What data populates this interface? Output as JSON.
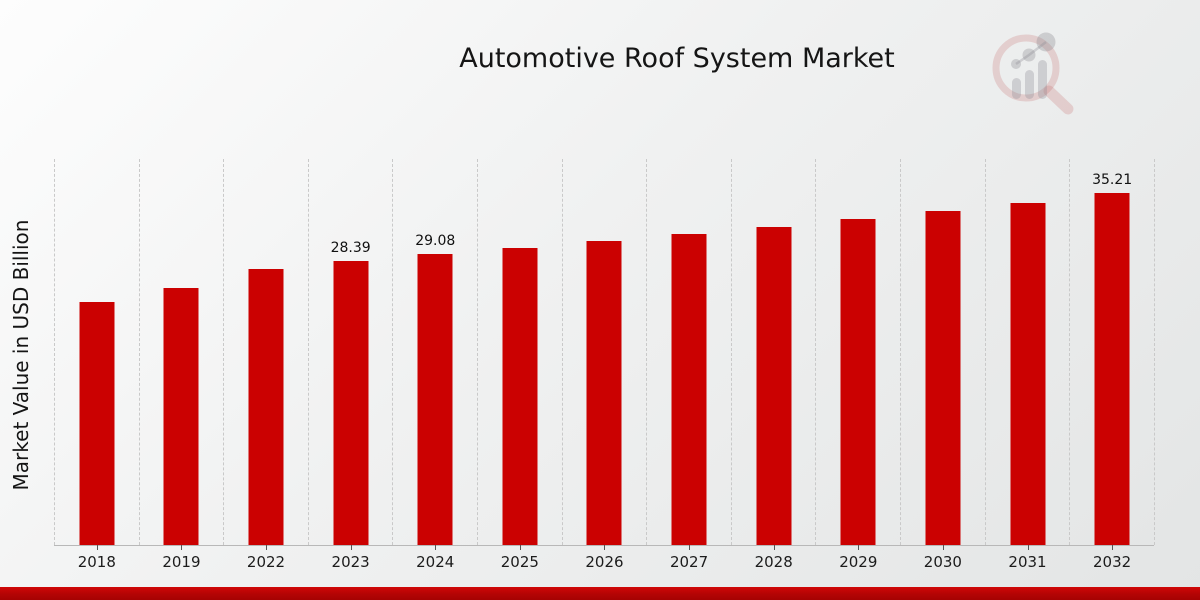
{
  "chart_data": {
    "type": "bar",
    "title": "Automotive Roof System Market",
    "xlabel": "",
    "ylabel": "Market Value in USD Billion",
    "categories": [
      "2018",
      "2019",
      "2022",
      "2023",
      "2024",
      "2025",
      "2026",
      "2027",
      "2028",
      "2029",
      "2030",
      "2031",
      "2032"
    ],
    "values": [
      24.3,
      25.7,
      27.6,
      28.39,
      29.08,
      29.7,
      30.4,
      31.1,
      31.8,
      32.6,
      33.4,
      34.2,
      35.21
    ],
    "bar_labels": [
      "",
      "",
      "",
      "28.39",
      "29.08",
      "",
      "",
      "",
      "",
      "",
      "",
      "",
      "35.21"
    ],
    "ylim": [
      0,
      38.6
    ],
    "bar_color": "#cb0101",
    "grid": "vertical dashed lines between categories",
    "legend": "none"
  },
  "branding": {
    "logo_icon": "magnifier-bar-chart-logo"
  },
  "colors": {
    "bar": "#cb0101",
    "bottom_stripe": "#b30404",
    "gridline": "#c9c9c9",
    "axis_line": "#b8b8b8",
    "text": "#151515",
    "background_light": "#fdfdfd",
    "background_dark": "#e3e5e5"
  }
}
